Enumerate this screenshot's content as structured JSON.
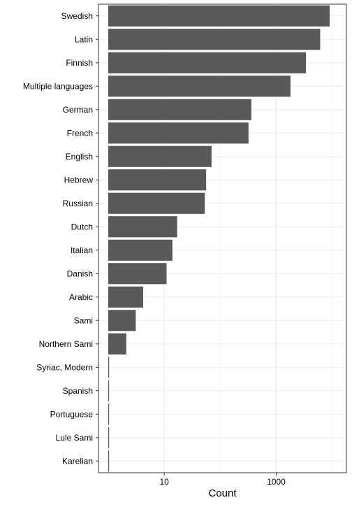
{
  "chart_data": {
    "type": "bar",
    "orientation": "horizontal",
    "xscale": "log10",
    "title": "",
    "xlabel": "Count",
    "ylabel": "",
    "grid": true,
    "categories": [
      "Swedish",
      "Latin",
      "Finnish",
      "Multiple languages",
      "German",
      "French",
      "English",
      "Hebrew",
      "Russian",
      "Dutch",
      "Italian",
      "Danish",
      "Arabic",
      "Sami",
      "Northern Sami",
      "Syriac, Modern",
      "Spanish",
      "Portuguese",
      "Lule Sami",
      "Karelian"
    ],
    "values": [
      9000,
      6100,
      3400,
      1800,
      360,
      320,
      70,
      56,
      53,
      17,
      14,
      11,
      4.2,
      3.1,
      2.1,
      1,
      1,
      1,
      1,
      1
    ],
    "xlim": [
      1,
      12000
    ],
    "xticks": [
      10,
      1000
    ],
    "xtick_labels": [
      "10",
      "1000"
    ],
    "colors": {
      "bar": "#595959",
      "panel_border": "#333333",
      "grid": "#ebebeb",
      "background": "#ffffff"
    }
  }
}
